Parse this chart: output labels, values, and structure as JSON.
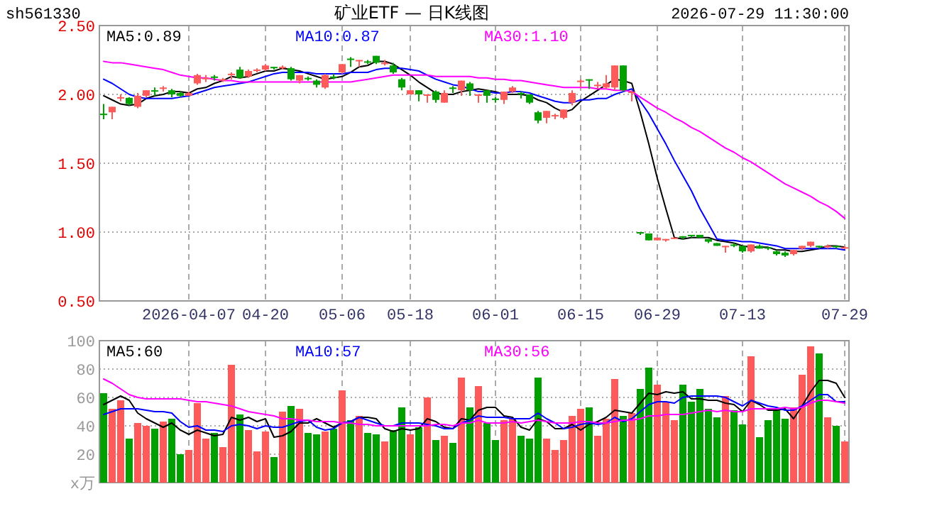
{
  "chart_data": [
    {
      "type": "candlestick",
      "title": "矿业ETF — 日K线图",
      "annotations": [
        "sh561330",
        "2026-07-29 11:30:00"
      ],
      "categories": [
        null,
        null,
        null,
        null,
        null,
        null,
        null,
        null,
        null,
        null,
        "2026-04-07",
        null,
        null,
        null,
        null,
        null,
        null,
        null,
        null,
        "04-20",
        null,
        null,
        null,
        null,
        null,
        null,
        null,
        null,
        "05-06",
        null,
        null,
        null,
        null,
        null,
        null,
        null,
        "05-18",
        null,
        null,
        null,
        null,
        null,
        null,
        null,
        null,
        null,
        "06-01",
        null,
        null,
        null,
        null,
        null,
        null,
        null,
        null,
        null,
        "06-15",
        null,
        null,
        null,
        null,
        null,
        null,
        null,
        null,
        "06-29",
        null,
        null,
        null,
        null,
        null,
        null,
        null,
        null,
        null,
        "07-13",
        null,
        null,
        null,
        null,
        null,
        null,
        null,
        null,
        null,
        null,
        null,
        "07-29"
      ],
      "ohlc": [
        [
          1.86,
          1.93,
          1.82,
          1.85
        ],
        [
          1.87,
          1.91,
          1.82,
          1.91
        ],
        [
          1.97,
          2.0,
          1.95,
          1.98
        ],
        [
          1.975,
          1.98,
          1.92,
          1.93
        ],
        [
          1.91,
          2.01,
          1.9,
          1.99
        ],
        [
          1.99,
          2.03,
          1.98,
          2.03
        ],
        [
          2.03,
          2.05,
          1.99,
          2.02
        ],
        [
          2.04,
          2.06,
          2.02,
          2.05
        ],
        [
          2.03,
          2.04,
          1.98,
          2.0
        ],
        [
          2.01,
          2.02,
          1.98,
          1.99
        ],
        [
          1.99,
          2.02,
          1.99,
          2.01
        ],
        [
          2.08,
          2.15,
          2.07,
          2.14
        ],
        [
          2.11,
          2.14,
          2.09,
          2.12
        ],
        [
          2.13,
          2.14,
          2.1,
          2.12
        ],
        [
          2.1,
          2.12,
          2.09,
          2.11
        ],
        [
          2.14,
          2.16,
          2.11,
          2.15
        ],
        [
          2.18,
          2.2,
          2.12,
          2.12
        ],
        [
          2.13,
          2.18,
          2.12,
          2.17
        ],
        [
          2.17,
          2.19,
          2.16,
          2.18
        ],
        [
          2.18,
          2.22,
          2.17,
          2.21
        ],
        [
          2.2,
          2.2,
          2.18,
          2.19
        ],
        [
          2.19,
          2.21,
          2.18,
          2.2
        ],
        [
          2.19,
          2.2,
          2.1,
          2.11
        ],
        [
          2.1,
          2.14,
          2.08,
          2.14
        ],
        [
          2.12,
          2.13,
          2.1,
          2.11
        ],
        [
          2.1,
          2.11,
          2.05,
          2.07
        ],
        [
          2.05,
          2.15,
          2.04,
          2.14
        ],
        [
          2.13,
          2.15,
          2.11,
          2.12
        ],
        [
          2.16,
          2.22,
          2.15,
          2.22
        ],
        [
          2.26,
          2.27,
          2.2,
          2.25
        ],
        [
          2.24,
          2.25,
          2.2,
          2.25
        ],
        [
          2.24,
          2.25,
          2.22,
          2.23
        ],
        [
          2.28,
          2.28,
          2.22,
          2.23
        ],
        [
          2.22,
          2.25,
          2.21,
          2.23
        ],
        [
          2.21,
          2.23,
          2.15,
          2.16
        ],
        [
          2.11,
          2.12,
          2.03,
          2.05
        ],
        [
          2.0,
          2.03,
          2.0,
          2.03
        ],
        [
          2.03,
          2.03,
          1.95,
          2.0
        ],
        [
          1.99,
          2.0,
          1.94,
          2.0
        ],
        [
          2.02,
          2.03,
          1.94,
          1.96
        ],
        [
          1.94,
          2.03,
          1.94,
          2.01
        ],
        [
          2.05,
          2.06,
          2.01,
          2.04
        ],
        [
          2.03,
          2.1,
          1.99,
          2.1
        ],
        [
          2.08,
          2.09,
          1.99,
          2.03
        ],
        [
          1.99,
          2.0,
          1.94,
          2.0
        ],
        [
          2.03,
          2.03,
          1.94,
          1.99
        ],
        [
          1.97,
          1.98,
          1.94,
          1.96
        ],
        [
          1.96,
          2.02,
          1.93,
          2.02
        ],
        [
          2.02,
          2.06,
          2.01,
          2.05
        ],
        [
          2.01,
          2.02,
          1.97,
          2.0
        ],
        [
          2.0,
          2.0,
          1.93,
          1.94
        ],
        [
          1.87,
          1.88,
          1.79,
          1.81
        ],
        [
          1.83,
          1.88,
          1.79,
          1.88
        ],
        [
          1.84,
          1.86,
          1.82,
          1.85
        ],
        [
          1.83,
          1.89,
          1.82,
          1.89
        ],
        [
          1.94,
          2.03,
          1.92,
          2.01
        ],
        [
          2.09,
          2.11,
          2.05,
          2.1
        ],
        [
          2.11,
          2.11,
          2.04,
          2.1
        ],
        [
          2.06,
          2.09,
          2.04,
          2.07
        ],
        [
          2.05,
          2.14,
          2.04,
          2.08
        ],
        [
          2.05,
          2.21,
          2.03,
          2.21
        ],
        [
          2.21,
          2.21,
          2.02,
          2.03
        ],
        [
          2.01,
          2.03,
          1.95,
          2.02
        ],
        [
          1.0,
          1.0,
          0.98,
          0.99
        ],
        [
          0.99,
          0.99,
          0.94,
          0.94
        ],
        [
          0.94,
          0.96,
          0.94,
          0.96
        ],
        [
          0.94,
          0.95,
          0.93,
          0.95
        ],
        [
          0.95,
          0.96,
          0.95,
          0.96
        ],
        [
          0.97,
          0.97,
          0.95,
          0.96
        ],
        [
          0.98,
          0.98,
          0.96,
          0.97
        ],
        [
          0.98,
          0.98,
          0.96,
          0.96
        ],
        [
          0.95,
          0.95,
          0.92,
          0.93
        ],
        [
          0.92,
          0.92,
          0.9,
          0.9
        ],
        [
          0.89,
          0.9,
          0.85,
          0.9
        ],
        [
          0.91,
          0.92,
          0.89,
          0.9
        ],
        [
          0.9,
          0.9,
          0.85,
          0.86
        ],
        [
          0.86,
          0.91,
          0.85,
          0.91
        ],
        [
          0.9,
          0.91,
          0.88,
          0.88
        ],
        [
          0.89,
          0.89,
          0.87,
          0.88
        ],
        [
          0.86,
          0.87,
          0.83,
          0.84
        ],
        [
          0.85,
          0.86,
          0.82,
          0.83
        ],
        [
          0.84,
          0.87,
          0.83,
          0.87
        ],
        [
          0.88,
          0.9,
          0.87,
          0.9
        ],
        [
          0.9,
          0.93,
          0.89,
          0.93
        ],
        [
          0.9,
          0.9,
          0.88,
          0.89
        ],
        [
          0.89,
          0.91,
          0.88,
          0.9
        ],
        [
          0.9,
          0.9,
          0.88,
          0.89
        ],
        [
          0.88,
          0.9,
          0.88,
          0.89
        ]
      ],
      "colors": [
        "#00a000",
        "#ff5a5a",
        "#ff5a5a",
        "#00a000",
        "#ff5a5a",
        "#ff5a5a",
        "#00a000",
        "#ff5a5a",
        "#00a000",
        "#00a000",
        "#ff5a5a",
        "#ff5a5a",
        "#ff5a5a",
        "#00a000",
        "#ff5a5a",
        "#ff5a5a",
        "#00a000",
        "#ff5a5a",
        "#ff5a5a",
        "#ff5a5a",
        "#00a000",
        "#ff5a5a",
        "#00a000",
        "#ff5a5a",
        "#00a000",
        "#00a000",
        "#ff5a5a",
        "#00a000",
        "#ff5a5a",
        "#00a000",
        "#ff5a5a",
        "#00a000",
        "#00a000",
        "#ff5a5a",
        "#00a000",
        "#00a000",
        "#ff5a5a",
        "#00a000",
        "#ff5a5a",
        "#00a000",
        "#ff5a5a",
        "#00a000",
        "#ff5a5a",
        "#00a000",
        "#ff5a5a",
        "#00a000",
        "#00a000",
        "#ff5a5a",
        "#ff5a5a",
        "#00a000",
        "#00a000",
        "#00a000",
        "#ff5a5a",
        "#ff5a5a",
        "#ff5a5a",
        "#ff5a5a",
        "#ff5a5a",
        "#00a000",
        "#ff5a5a",
        "#ff5a5a",
        "#ff5a5a",
        "#00a000",
        "#ff5a5a",
        "#00a000",
        "#00a000",
        "#ff5a5a",
        "#ff5a5a",
        "#ff5a5a",
        "#00a000",
        "#00a000",
        "#00a000",
        "#00a000",
        "#00a000",
        "#ff5a5a",
        "#00a000",
        "#00a000",
        "#ff5a5a",
        "#00a000",
        "#00a000",
        "#00a000",
        "#00a000",
        "#ff5a5a",
        "#ff5a5a",
        "#ff5a5a",
        "#00a000",
        "#ff5a5a",
        "#00a000",
        "#ff5a5a"
      ],
      "series": [
        {
          "type": "line",
          "name": "MA5:0.89",
          "color": "#000000",
          "values": [
            1.99,
            1.96,
            1.93,
            1.92,
            1.93,
            1.97,
            1.99,
            2.0,
            2.02,
            2.02,
            2.01,
            2.04,
            2.05,
            2.08,
            2.1,
            2.13,
            2.12,
            2.13,
            2.15,
            2.17,
            2.17,
            2.19,
            2.18,
            2.17,
            2.15,
            2.13,
            2.11,
            2.12,
            2.13,
            2.16,
            2.2,
            2.21,
            2.24,
            2.24,
            2.22,
            2.18,
            2.14,
            2.09,
            2.05,
            2.01,
            2.0,
            2.0,
            2.02,
            2.03,
            2.04,
            2.03,
            2.02,
            2.0,
            2.0,
            2.0,
            1.99,
            1.96,
            1.94,
            1.9,
            1.87,
            1.89,
            1.95,
            1.99,
            2.03,
            2.07,
            2.11,
            2.1,
            2.08,
            1.87,
            1.64,
            1.39,
            1.17,
            0.96,
            0.95,
            0.96,
            0.96,
            0.96,
            0.94,
            0.93,
            0.92,
            0.9,
            0.89,
            0.89,
            0.89,
            0.87,
            0.87,
            0.86,
            0.86,
            0.87,
            0.88,
            0.9,
            0.9,
            0.89
          ]
        },
        {
          "type": "line",
          "name": "MA10:0.87",
          "color": "#0000ff",
          "values": [
            2.11,
            2.08,
            2.04,
            2.0,
            1.98,
            1.97,
            1.97,
            1.97,
            1.97,
            1.98,
            1.99,
            2.01,
            2.03,
            2.05,
            2.06,
            2.07,
            2.08,
            2.09,
            2.11,
            2.13,
            2.15,
            2.16,
            2.16,
            2.16,
            2.16,
            2.15,
            2.15,
            2.15,
            2.15,
            2.16,
            2.16,
            2.16,
            2.18,
            2.19,
            2.19,
            2.19,
            2.18,
            2.17,
            2.14,
            2.11,
            2.09,
            2.07,
            2.06,
            2.04,
            2.02,
            2.02,
            2.01,
            2.01,
            2.02,
            2.02,
            2.01,
            1.99,
            1.97,
            1.95,
            1.94,
            1.94,
            1.96,
            1.96,
            1.97,
            1.97,
            2.0,
            2.02,
            2.04,
            1.95,
            1.86,
            1.75,
            1.64,
            1.52,
            1.41,
            1.3,
            1.17,
            1.06,
            0.95,
            0.94,
            0.94,
            0.93,
            0.93,
            0.92,
            0.91,
            0.9,
            0.88,
            0.88,
            0.88,
            0.88,
            0.88,
            0.88,
            0.88,
            0.87
          ]
        },
        {
          "type": "line",
          "name": "MA30:1.10",
          "color": "#ff00ff",
          "values": [
            2.24,
            2.23,
            2.23,
            2.22,
            2.21,
            2.2,
            2.19,
            2.18,
            2.16,
            2.14,
            2.13,
            2.12,
            2.12,
            2.11,
            2.1,
            2.1,
            2.09,
            2.09,
            2.09,
            2.09,
            2.09,
            2.09,
            2.09,
            2.09,
            2.09,
            2.09,
            2.09,
            2.09,
            2.09,
            2.09,
            2.1,
            2.11,
            2.12,
            2.13,
            2.14,
            2.14,
            2.14,
            2.14,
            2.14,
            2.13,
            2.13,
            2.13,
            2.13,
            2.13,
            2.12,
            2.12,
            2.11,
            2.11,
            2.1,
            2.1,
            2.09,
            2.08,
            2.07,
            2.06,
            2.05,
            2.05,
            2.05,
            2.05,
            2.04,
            2.04,
            2.03,
            2.03,
            2.02,
            1.98,
            1.94,
            1.9,
            1.87,
            1.83,
            1.8,
            1.76,
            1.73,
            1.69,
            1.65,
            1.61,
            1.58,
            1.54,
            1.51,
            1.47,
            1.43,
            1.39,
            1.35,
            1.32,
            1.29,
            1.26,
            1.22,
            1.19,
            1.15,
            1.1
          ]
        }
      ],
      "ylim": [
        0.5,
        2.5
      ],
      "yticks": [
        {
          "value": 0.5,
          "label": "0.50"
        },
        {
          "value": 1.0,
          "label": "1.00"
        },
        {
          "value": 1.5,
          "label": "1.50"
        },
        {
          "value": 2.0,
          "label": "2.00"
        },
        {
          "value": 2.5,
          "label": "2.50"
        }
      ],
      "grid": true,
      "legend": "top"
    },
    {
      "type": "bar",
      "categories": [
        null,
        null,
        null,
        null,
        null,
        null,
        null,
        null,
        null,
        null,
        null,
        null,
        null,
        null,
        null,
        null,
        null,
        null,
        null,
        null,
        null,
        null,
        null,
        null,
        null,
        null,
        null,
        null,
        null,
        null,
        null,
        null,
        null,
        null,
        null,
        null,
        null,
        null,
        null,
        null,
        null,
        null,
        null,
        null,
        null,
        null,
        null,
        null,
        null,
        null,
        null,
        null,
        null,
        null,
        null,
        null,
        null,
        null,
        null,
        null,
        null,
        null,
        null,
        null,
        null,
        null,
        null,
        null,
        null,
        null,
        null,
        null,
        null,
        null,
        null,
        null,
        null,
        null,
        null,
        null,
        null,
        null,
        null,
        null,
        null,
        null,
        null,
        null
      ],
      "values": [
        63,
        52,
        58,
        31,
        42,
        40,
        38,
        43,
        45,
        20,
        23,
        56,
        31,
        35,
        25,
        83,
        48,
        37,
        22,
        36,
        18,
        50,
        54,
        52,
        35,
        34,
        36,
        38,
        65,
        44,
        47,
        35,
        34,
        29,
        37,
        53,
        34,
        39,
        60,
        30,
        33,
        28,
        74,
        53,
        68,
        42,
        30,
        44,
        45,
        33,
        31,
        74,
        31,
        23,
        30,
        47,
        52,
        53,
        33,
        45,
        73,
        47,
        49,
        66,
        81,
        69,
        57,
        44,
        69,
        57,
        66,
        52,
        46,
        61,
        51,
        41,
        89,
        32,
        44,
        51,
        45,
        53,
        76,
        96,
        91,
        46,
        40,
        29
      ],
      "colors": [
        "#00a000",
        "#ff5a5a",
        "#ff5a5a",
        "#00a000",
        "#ff5a5a",
        "#ff5a5a",
        "#00a000",
        "#ff5a5a",
        "#00a000",
        "#00a000",
        "#ff5a5a",
        "#ff5a5a",
        "#ff5a5a",
        "#00a000",
        "#ff5a5a",
        "#ff5a5a",
        "#00a000",
        "#ff5a5a",
        "#ff5a5a",
        "#ff5a5a",
        "#00a000",
        "#ff5a5a",
        "#00a000",
        "#ff5a5a",
        "#00a000",
        "#00a000",
        "#ff5a5a",
        "#00a000",
        "#ff5a5a",
        "#00a000",
        "#ff5a5a",
        "#00a000",
        "#00a000",
        "#ff5a5a",
        "#00a000",
        "#00a000",
        "#ff5a5a",
        "#00a000",
        "#ff5a5a",
        "#00a000",
        "#ff5a5a",
        "#00a000",
        "#ff5a5a",
        "#00a000",
        "#ff5a5a",
        "#00a000",
        "#00a000",
        "#ff5a5a",
        "#ff5a5a",
        "#00a000",
        "#00a000",
        "#00a000",
        "#ff5a5a",
        "#ff5a5a",
        "#ff5a5a",
        "#ff5a5a",
        "#ff5a5a",
        "#00a000",
        "#ff5a5a",
        "#ff5a5a",
        "#ff5a5a",
        "#00a000",
        "#ff5a5a",
        "#00a000",
        "#00a000",
        "#ff5a5a",
        "#ff5a5a",
        "#ff5a5a",
        "#00a000",
        "#00a000",
        "#00a000",
        "#00a000",
        "#00a000",
        "#ff5a5a",
        "#00a000",
        "#00a000",
        "#ff5a5a",
        "#00a000",
        "#00a000",
        "#00a000",
        "#00a000",
        "#ff5a5a",
        "#ff5a5a",
        "#ff5a5a",
        "#00a000",
        "#ff5a5a",
        "#00a000",
        "#ff5a5a"
      ],
      "series": [
        {
          "type": "line",
          "name": "MA5:60",
          "color": "#000000",
          "values": [
            55,
            58,
            61,
            58,
            49,
            45,
            42,
            39,
            42,
            37,
            34,
            37,
            35,
            33,
            34,
            46,
            44,
            46,
            43,
            45,
            32,
            33,
            36,
            42,
            42,
            45,
            42,
            39,
            42,
            43,
            46,
            46,
            45,
            38,
            36,
            38,
            37,
            38,
            45,
            43,
            39,
            38,
            45,
            44,
            51,
            53,
            53,
            47,
            46,
            39,
            37,
            45,
            43,
            38,
            38,
            41,
            37,
            41,
            43,
            46,
            51,
            50,
            49,
            56,
            63,
            62,
            64,
            63,
            64,
            59,
            59,
            58,
            58,
            56,
            55,
            50,
            58,
            55,
            51,
            51,
            52,
            45,
            54,
            64,
            72,
            72,
            70,
            60
          ]
        },
        {
          "type": "line",
          "name": "MA10:57",
          "color": "#0000ff",
          "values": [
            48,
            50,
            52,
            52,
            52,
            51,
            50,
            50,
            49,
            43,
            39,
            40,
            37,
            37,
            36,
            40,
            41,
            40,
            38,
            40,
            39,
            39,
            41,
            43,
            44,
            39,
            37,
            38,
            42,
            43,
            46,
            44,
            42,
            40,
            40,
            42,
            42,
            42,
            41,
            40,
            38,
            38,
            42,
            44,
            47,
            46,
            46,
            46,
            45,
            45,
            45,
            49,
            45,
            42,
            38,
            39,
            41,
            42,
            41,
            42,
            46,
            43,
            45,
            50,
            55,
            57,
            57,
            56,
            60,
            61,
            61,
            61,
            61,
            60,
            57,
            54,
            58,
            56,
            54,
            53,
            51,
            51,
            54,
            58,
            62,
            62,
            57,
            57
          ]
        },
        {
          "type": "line",
          "name": "MA30:56",
          "color": "#ff00ff",
          "values": [
            73,
            70,
            66,
            62,
            60,
            59,
            59,
            59,
            59,
            59,
            58,
            57,
            57,
            56,
            55,
            54,
            52,
            50,
            49,
            48,
            47,
            45,
            45,
            44,
            44,
            43,
            43,
            43,
            42,
            42,
            41,
            41,
            40,
            40,
            40,
            40,
            40,
            40,
            40,
            41,
            41,
            40,
            42,
            42,
            44,
            42,
            42,
            42,
            43,
            42,
            43,
            44,
            43,
            42,
            42,
            42,
            43,
            43,
            42,
            42,
            43,
            44,
            44,
            45,
            47,
            47,
            48,
            48,
            48,
            49,
            50,
            51,
            50,
            51,
            50,
            50,
            52,
            52,
            52,
            52,
            53,
            52,
            53,
            56,
            58,
            58,
            57,
            56
          ]
        }
      ],
      "ylim": [
        0,
        100
      ],
      "yticks": [
        {
          "value": 0,
          "label": "x万"
        },
        20,
        40,
        60,
        80,
        100
      ],
      "tick_labels": "y",
      "grid": true,
      "legend": "top"
    }
  ]
}
